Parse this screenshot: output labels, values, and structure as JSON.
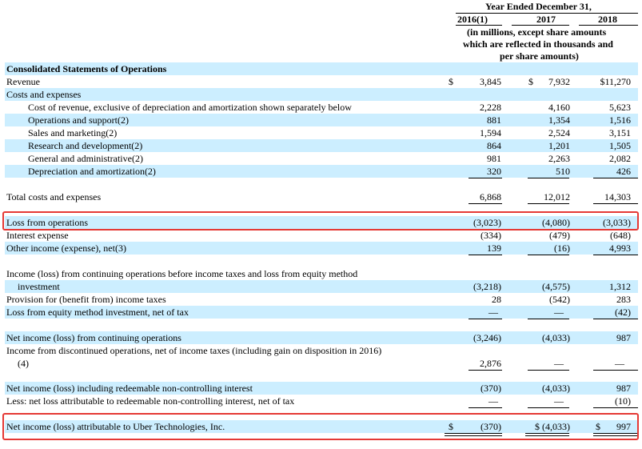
{
  "header": {
    "year_ended": "Year Ended December 31,",
    "col_2016": "2016(1)",
    "col_2017": "2017",
    "col_2018": "2018",
    "units_line1": "(in millions, except share amounts",
    "units_line2": "which are reflected in thousands and",
    "units_line3": "per share amounts)"
  },
  "section_title": "Consolidated Statements of Operations",
  "rows": {
    "revenue": {
      "label": "Revenue",
      "v2016": "3,845",
      "v2017": "7,932",
      "v2018": "$11,270"
    },
    "costs_header": {
      "label": "Costs and expenses"
    },
    "cost_of_revenue": {
      "label": "Cost of revenue, exclusive of depreciation and amortization shown separately below",
      "v2016": "2,228",
      "v2017": "4,160",
      "v2018": "5,623"
    },
    "ops_support": {
      "label": "Operations and support(2)",
      "v2016": "881",
      "v2017": "1,354",
      "v2018": "1,516"
    },
    "sales_marketing": {
      "label": "Sales and marketing(2)",
      "v2016": "1,594",
      "v2017": "2,524",
      "v2018": "3,151"
    },
    "r_and_d": {
      "label": "Research and development(2)",
      "v2016": "864",
      "v2017": "1,201",
      "v2018": "1,505"
    },
    "g_and_a": {
      "label": "General and administrative(2)",
      "v2016": "981",
      "v2017": "2,263",
      "v2018": "2,082"
    },
    "d_and_a": {
      "label": "Depreciation and amortization(2)",
      "v2016": "320",
      "v2017": "510",
      "v2018": "426"
    },
    "total_costs": {
      "label": "Total costs and expenses",
      "v2016": "6,868",
      "v2017": "12,012",
      "v2018": "14,303"
    },
    "loss_ops": {
      "label": "Loss from operations",
      "v2016": "(3,023)",
      "v2017": "(4,080)",
      "v2018": "(3,033)"
    },
    "interest": {
      "label": "Interest expense",
      "v2016": "(334)",
      "v2017": "(479)",
      "v2018": "(648)"
    },
    "other_income": {
      "label": "Other income (expense), net(3)",
      "v2016": "139",
      "v2017": "(16)",
      "v2018": "4,993"
    },
    "income_before_tax_l1": {
      "label": "Income (loss) from continuing operations before income taxes and loss from equity method"
    },
    "income_before_tax": {
      "label": "investment",
      "v2016": "(3,218)",
      "v2017": "(4,575)",
      "v2018": "1,312"
    },
    "provision": {
      "label": "Provision for (benefit from) income taxes",
      "v2016": "28",
      "v2017": "(542)",
      "v2018": "283"
    },
    "equity_loss": {
      "label": "Loss from equity method investment, net of tax",
      "v2016": "—",
      "v2017": "—",
      "v2018": "(42)"
    },
    "net_cont": {
      "label": "Net income (loss) from continuing operations",
      "v2016": "(3,246)",
      "v2017": "(4,033)",
      "v2018": "987"
    },
    "discontinued_l1": {
      "label": "Income from discontinued operations, net of income taxes (including gain on disposition in 2016)"
    },
    "discontinued": {
      "label": "(4)",
      "v2016": "2,876",
      "v2017": "—",
      "v2018": "—"
    },
    "net_incl_nci": {
      "label": "Net income (loss) including redeemable non-controlling interest",
      "v2016": "(370)",
      "v2017": "(4,033)",
      "v2018": "987"
    },
    "less_nci": {
      "label": "Less: net loss attributable to redeemable non-controlling interest, net of tax",
      "v2016": "—",
      "v2017": "—",
      "v2018": "(10)"
    },
    "net_uber": {
      "label": "Net income (loss) attributable to Uber Technologies, Inc.",
      "v2016": "(370)",
      "v2017": "$ (4,033)",
      "v2018": "997"
    }
  },
  "currency_symbol": "$",
  "colors": {
    "row_shade": "#cceeff",
    "highlight_box": "#e53935"
  }
}
